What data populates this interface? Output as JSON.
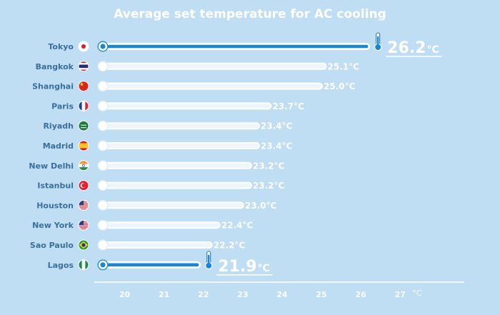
{
  "chart_data": {
    "type": "bar",
    "title": "Average set temperature for AC cooling",
    "unit": "°C",
    "categories": [
      "Tokyo",
      "Bangkok",
      "Shanghai",
      "Paris",
      "Riyadh",
      "Madrid",
      "New Delhi",
      "Istanbul",
      "Houston",
      "New York",
      "Sao Paulo",
      "Lagos"
    ],
    "values": [
      26.2,
      25.1,
      25.0,
      23.7,
      23.4,
      23.4,
      23.2,
      23.2,
      23.0,
      22.4,
      22.2,
      21.9
    ],
    "value_labels": [
      "26.2",
      "25.1°C",
      "25.0°C",
      "23.7°C",
      "23.4°C",
      "23.4°C",
      "23.2°C",
      "23.2°C",
      "23.0°C",
      "22.4°C",
      "22.2°C",
      "21.9"
    ],
    "highlighted": [
      "Tokyo",
      "Lagos"
    ],
    "flags": [
      "japan-flag-icon",
      "thailand-flag-icon",
      "china-flag-icon",
      "france-flag-icon",
      "saudi-arabia-flag-icon",
      "spain-flag-icon",
      "india-flag-icon",
      "turkey-flag-icon",
      "usa-flag-icon",
      "usa-flag-icon",
      "brazil-flag-icon",
      "nigeria-flag-icon"
    ],
    "x_ticks": [
      20,
      21,
      22,
      23,
      24,
      25,
      26,
      27
    ],
    "xlim": [
      19.5,
      27.5
    ],
    "grid": false,
    "colors": {
      "background": "#bfddf3",
      "highlight_bar": "#1a86d4",
      "bar": "#ffffff",
      "text": "#ffffff",
      "city_label": "#3a6f9a"
    }
  }
}
